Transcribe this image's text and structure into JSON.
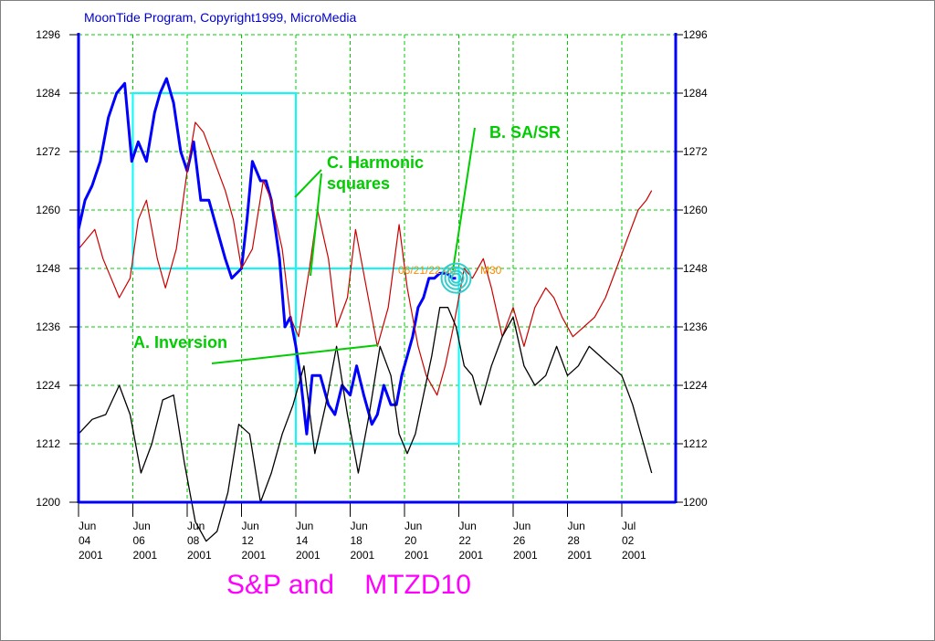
{
  "header": "MoonTide Program, Copyright1999, MicroMedia",
  "chart_data": {
    "type": "line",
    "title": "S&P and    MTZD10",
    "ylim": [
      1200,
      1296
    ],
    "y_ticks": [
      1200,
      1212,
      1224,
      1236,
      1248,
      1260,
      1272,
      1284,
      1296
    ],
    "grid": true,
    "x_ticks": [
      {
        "month": "Jun",
        "day": "04",
        "year": "2001"
      },
      {
        "month": "Jun",
        "day": "06",
        "year": "2001"
      },
      {
        "month": "Jun",
        "day": "08",
        "year": "2001"
      },
      {
        "month": "Jun",
        "day": "12",
        "year": "2001"
      },
      {
        "month": "Jun",
        "day": "14",
        "year": "2001"
      },
      {
        "month": "Jun",
        "day": "18",
        "year": "2001"
      },
      {
        "month": "Jun",
        "day": "20",
        "year": "2001"
      },
      {
        "month": "Jun",
        "day": "22",
        "year": "2001"
      },
      {
        "month": "Jun",
        "day": "26",
        "year": "2001"
      },
      {
        "month": "Jun",
        "day": "28",
        "year": "2001"
      },
      {
        "month": "Jul",
        "day": "02",
        "year": "2001"
      }
    ],
    "series": [
      {
        "color": "#0000ff",
        "x": [
          0,
          0.12,
          0.25,
          0.4,
          0.55,
          0.7,
          0.85,
          0.98,
          1.1,
          1.25,
          1.4,
          1.5,
          1.62,
          1.75,
          1.88,
          2.0,
          2.12,
          2.25,
          2.4,
          2.55,
          2.7,
          2.82,
          3.0,
          3.1,
          3.2,
          3.35,
          3.45,
          3.55,
          3.7,
          3.8,
          3.9,
          4.0,
          4.08,
          4.2,
          4.3,
          4.45,
          4.6,
          4.72,
          4.85,
          5.0,
          5.12,
          5.25,
          5.4,
          5.5,
          5.62,
          5.75,
          5.85,
          5.95,
          6.05,
          6.15,
          6.25,
          6.35,
          6.45,
          6.55,
          6.65,
          6.78,
          6.88,
          6.95
        ],
        "y": [
          1256,
          1262,
          1265,
          1270,
          1279,
          1284,
          1286,
          1270,
          1274,
          1270,
          1280,
          1284,
          1287,
          1282,
          1272,
          1268,
          1274,
          1262,
          1262,
          1256,
          1250,
          1246,
          1248,
          1258,
          1270,
          1266,
          1266,
          1262,
          1250,
          1236,
          1238,
          1232,
          1226,
          1214,
          1226,
          1226,
          1220,
          1218,
          1224,
          1222,
          1228,
          1222,
          1216,
          1218,
          1224,
          1220,
          1220,
          1226,
          1230,
          1234,
          1240,
          1242,
          1246,
          1246,
          1247,
          1247,
          1246,
          1246
        ]
      },
      {
        "color": "#cc0000",
        "x": [
          0,
          0.15,
          0.3,
          0.45,
          0.6,
          0.75,
          0.95,
          1.1,
          1.25,
          1.45,
          1.6,
          1.8,
          2.0,
          2.15,
          2.3,
          2.5,
          2.7,
          2.85,
          3.0,
          3.2,
          3.4,
          3.55,
          3.75,
          3.9,
          4.05,
          4.25,
          4.4,
          4.6,
          4.75,
          4.95,
          5.1,
          5.3,
          5.5,
          5.7,
          5.9,
          6.05,
          6.25,
          6.4,
          6.6,
          6.75,
          6.9,
          7.1,
          7.25,
          7.45,
          7.6,
          7.8,
          8.0,
          8.2,
          8.4,
          8.6,
          8.75,
          8.9,
          9.1,
          9.3,
          9.5,
          9.7,
          9.9,
          10.1,
          10.3,
          10.45,
          10.55
        ],
        "y": [
          1252,
          1254,
          1256,
          1250,
          1246,
          1242,
          1246,
          1258,
          1262,
          1250,
          1244,
          1252,
          1268,
          1278,
          1276,
          1270,
          1264,
          1258,
          1248,
          1252,
          1266,
          1262,
          1252,
          1238,
          1234,
          1248,
          1260,
          1250,
          1236,
          1242,
          1256,
          1244,
          1232,
          1240,
          1257,
          1244,
          1232,
          1226,
          1222,
          1228,
          1236,
          1248,
          1246,
          1250,
          1244,
          1234,
          1240,
          1232,
          1240,
          1244,
          1242,
          1238,
          1234,
          1236,
          1238,
          1242,
          1248,
          1254,
          1260,
          1262,
          1264
        ]
      },
      {
        "color": "#000000",
        "x": [
          0,
          0.25,
          0.5,
          0.75,
          0.95,
          1.15,
          1.35,
          1.55,
          1.75,
          1.95,
          2.15,
          2.35,
          2.55,
          2.75,
          2.95,
          3.15,
          3.35,
          3.55,
          3.75,
          3.95,
          4.15,
          4.35,
          4.55,
          4.75,
          4.95,
          5.15,
          5.35,
          5.55,
          5.75,
          5.9,
          6.05,
          6.2,
          6.35,
          6.5,
          6.65,
          6.8,
          6.95,
          7.1,
          7.25,
          7.4,
          7.6,
          7.8,
          8.0,
          8.2,
          8.4,
          8.6,
          8.8,
          9.0,
          9.2,
          9.4,
          9.6,
          9.8,
          10.0,
          10.2,
          10.4,
          10.55
        ],
        "y": [
          1214,
          1217,
          1218,
          1224,
          1218,
          1206,
          1212,
          1221,
          1222,
          1208,
          1196,
          1192,
          1194,
          1202,
          1216,
          1214,
          1200,
          1206,
          1214,
          1220,
          1228,
          1210,
          1220,
          1232,
          1218,
          1206,
          1218,
          1232,
          1226,
          1214,
          1210,
          1214,
          1222,
          1230,
          1240,
          1240,
          1236,
          1228,
          1226,
          1220,
          1228,
          1234,
          1238,
          1228,
          1224,
          1226,
          1232,
          1226,
          1228,
          1232,
          1230,
          1228,
          1226,
          1220,
          1212,
          1206
        ]
      }
    ],
    "boxes": [
      {
        "x": [
          1.0,
          4.0
        ],
        "y": [
          1248,
          1284
        ]
      },
      {
        "x": [
          4.0,
          7.0
        ],
        "y": [
          1212,
          1248
        ]
      }
    ],
    "annotations": [
      {
        "text": "A. Inversion",
        "color": "#00cc00"
      },
      {
        "text": "B. SA/SR",
        "color": "#00cc00"
      },
      {
        "text": "C. Harmonic",
        "color": "#00cc00"
      },
      {
        "text": "squares",
        "color": "#00cc00"
      },
      {
        "text": "06/21/22:00",
        "color": "#ff8800"
      },
      {
        "text": "M30",
        "color": "#ff8800"
      }
    ]
  }
}
